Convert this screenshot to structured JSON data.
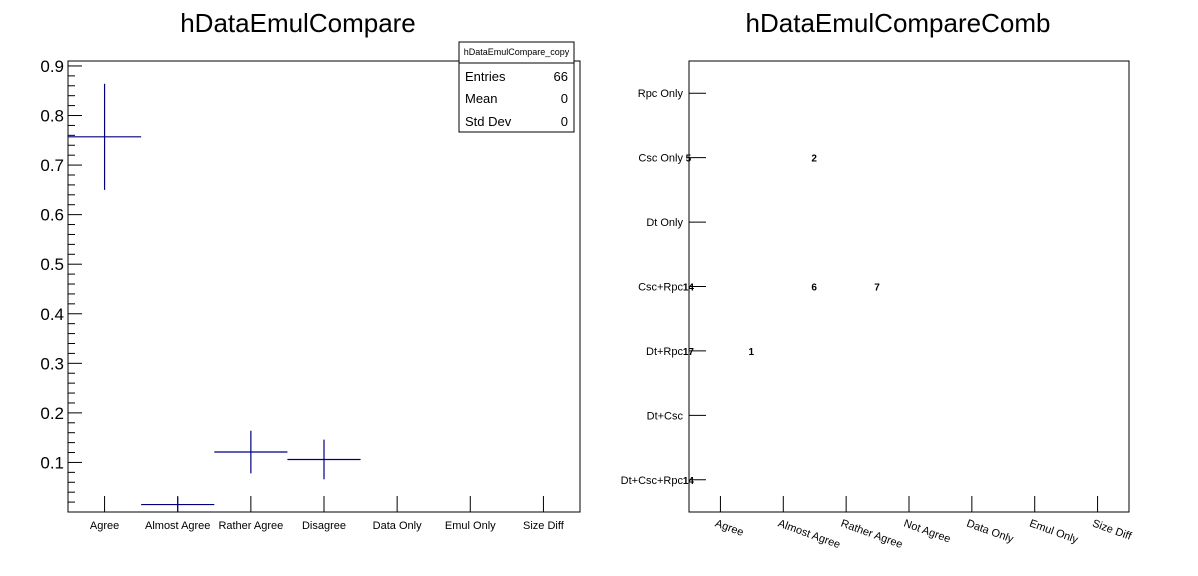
{
  "chart_data": [
    {
      "type": "histogram",
      "title": "hDataEmulCompare",
      "xlabel": "",
      "ylabel": "",
      "categories": [
        "Agree",
        "Almost Agree",
        "Rather Agree",
        "Disagree",
        "Data Only",
        "Emul Only",
        "Size Diff"
      ],
      "values": [
        0.757,
        0.015,
        0.121,
        0.106,
        0,
        0,
        0
      ],
      "errors": [
        0.107,
        0.015,
        0.043,
        0.04,
        0,
        0,
        0
      ],
      "ylim": [
        0,
        0.91
      ],
      "yticks": [
        0.1,
        0.2,
        0.3,
        0.4,
        0.5,
        0.6,
        0.7,
        0.8,
        0.9
      ],
      "line_color": "#000080",
      "grid": false,
      "stats_box": {
        "title": "hDataEmulCompare_copy",
        "rows": [
          {
            "label": "Entries",
            "value": "66"
          },
          {
            "label": "Mean",
            "value": "0"
          },
          {
            "label": "Std Dev",
            "value": "0"
          }
        ],
        "placement": "top-right"
      }
    },
    {
      "type": "heatmap",
      "title": "hDataEmulCompareComb",
      "xlabel": "",
      "ylabel": "",
      "x_categories": [
        "Agree",
        "Almost Agree",
        "Rather Agree",
        "Not Agree",
        "Data Only",
        "Emul Only",
        "Size Diff"
      ],
      "y_categories": [
        "Dt+Csc+Rpc",
        "Dt+Csc",
        "Dt+Rpc",
        "Csc+Rpc",
        "Dt Only",
        "Csc Only",
        "Rpc Only"
      ],
      "cells": [
        {
          "x": "Agree",
          "y": "Csc Only",
          "value": 5
        },
        {
          "x": "Rather Agree",
          "y": "Csc Only",
          "value": 2
        },
        {
          "x": "Agree",
          "y": "Csc+Rpc",
          "value": 14
        },
        {
          "x": "Rather Agree",
          "y": "Csc+Rpc",
          "value": 6
        },
        {
          "x": "Not Agree",
          "y": "Csc+Rpc",
          "value": 7
        },
        {
          "x": "Agree",
          "y": "Dt+Rpc",
          "value": 17
        },
        {
          "x": "Almost Agree",
          "y": "Dt+Rpc",
          "value": 1
        },
        {
          "x": "Agree",
          "y": "Dt+Csc+Rpc",
          "value": 14
        }
      ],
      "grid": false
    }
  ]
}
